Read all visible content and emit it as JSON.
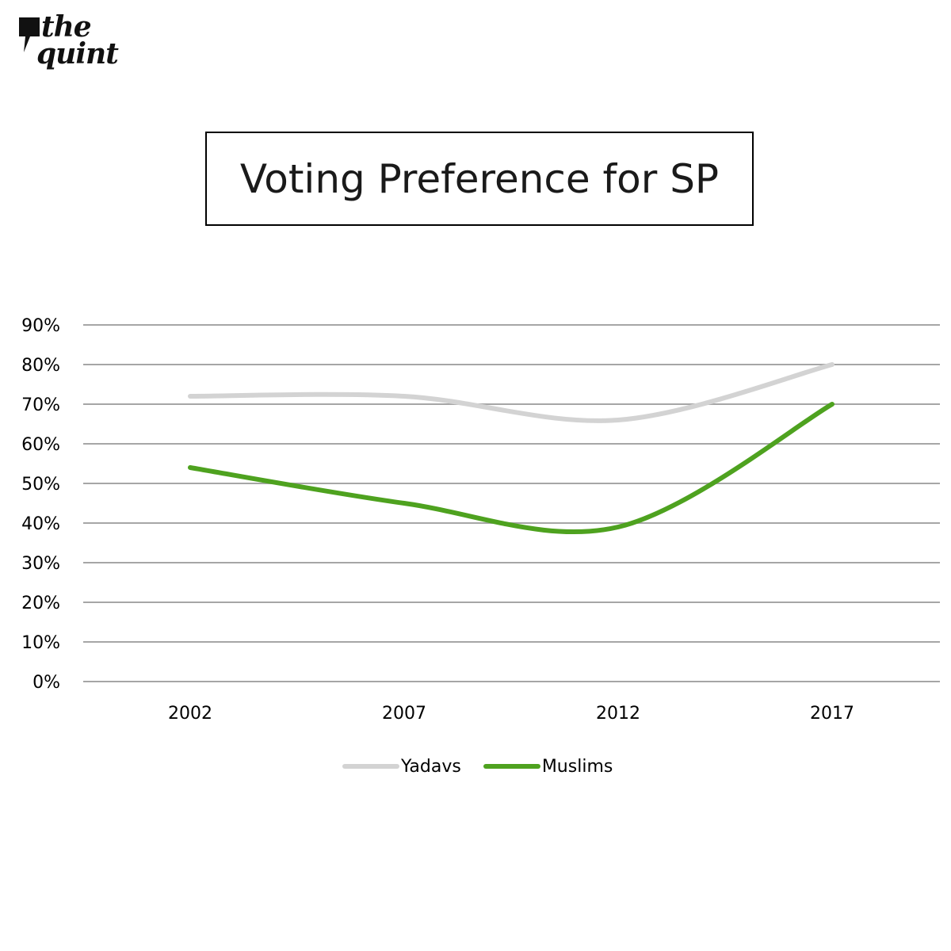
{
  "brand": {
    "logo_line1": "the",
    "logo_line2": "quint"
  },
  "chart_data": {
    "type": "line",
    "title": "Voting Preference for SP",
    "xlabel": "",
    "ylabel": "",
    "categories": [
      "2002",
      "2007",
      "2012",
      "2017"
    ],
    "yticks": [
      "0%",
      "10%",
      "20%",
      "30%",
      "40%",
      "50%",
      "60%",
      "70%",
      "80%",
      "90%"
    ],
    "ylim": [
      0,
      90
    ],
    "grid": true,
    "smooth": true,
    "legend_position": "bottom",
    "series": [
      {
        "name": "Yadavs",
        "values": [
          72,
          72,
          66,
          80
        ],
        "color": "#d3d3d3"
      },
      {
        "name": "Muslims",
        "values": [
          54,
          45,
          39,
          70
        ],
        "color": "#4ea21f"
      }
    ]
  }
}
